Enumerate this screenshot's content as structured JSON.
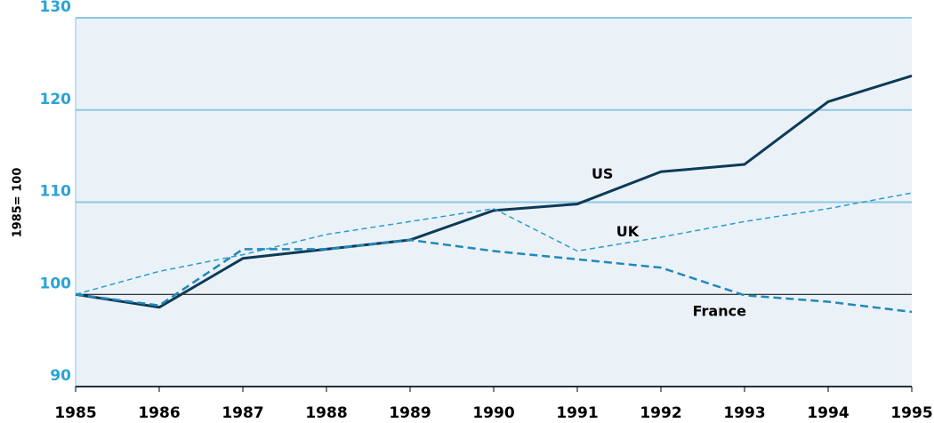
{
  "chart_data": {
    "type": "line",
    "ylabel": "1985= 100",
    "x": [
      1985,
      1986,
      1987,
      1988,
      1989,
      1990,
      1991,
      1992,
      1993,
      1994,
      1995
    ],
    "xlim": [
      1985,
      1995
    ],
    "xticks": [
      1985,
      1986,
      1987,
      1988,
      1989,
      1990,
      1991,
      1992,
      1993,
      1994,
      1995
    ],
    "ylim": [
      90,
      130
    ],
    "yticks": [
      90,
      100,
      110,
      120,
      130
    ],
    "grid": true,
    "series": [
      {
        "name": "US",
        "color": "#0d3a57",
        "values": [
          100,
          98.6,
          103.9,
          104.9,
          105.9,
          109.1,
          109.8,
          113.3,
          114.1,
          120.9,
          123.7
        ]
      },
      {
        "name": "UK",
        "color": "#2d9cce",
        "values": [
          100,
          102.5,
          104.3,
          106.5,
          107.9,
          109.3,
          104.7,
          106.2,
          107.9,
          109.3,
          111
        ]
      },
      {
        "name": "France",
        "color": "#2388b8",
        "values": [
          100,
          98.8,
          104.9,
          104.9,
          105.9,
          104.7,
          103.8,
          102.9,
          99.9,
          99.2,
          98.1
        ]
      }
    ]
  }
}
